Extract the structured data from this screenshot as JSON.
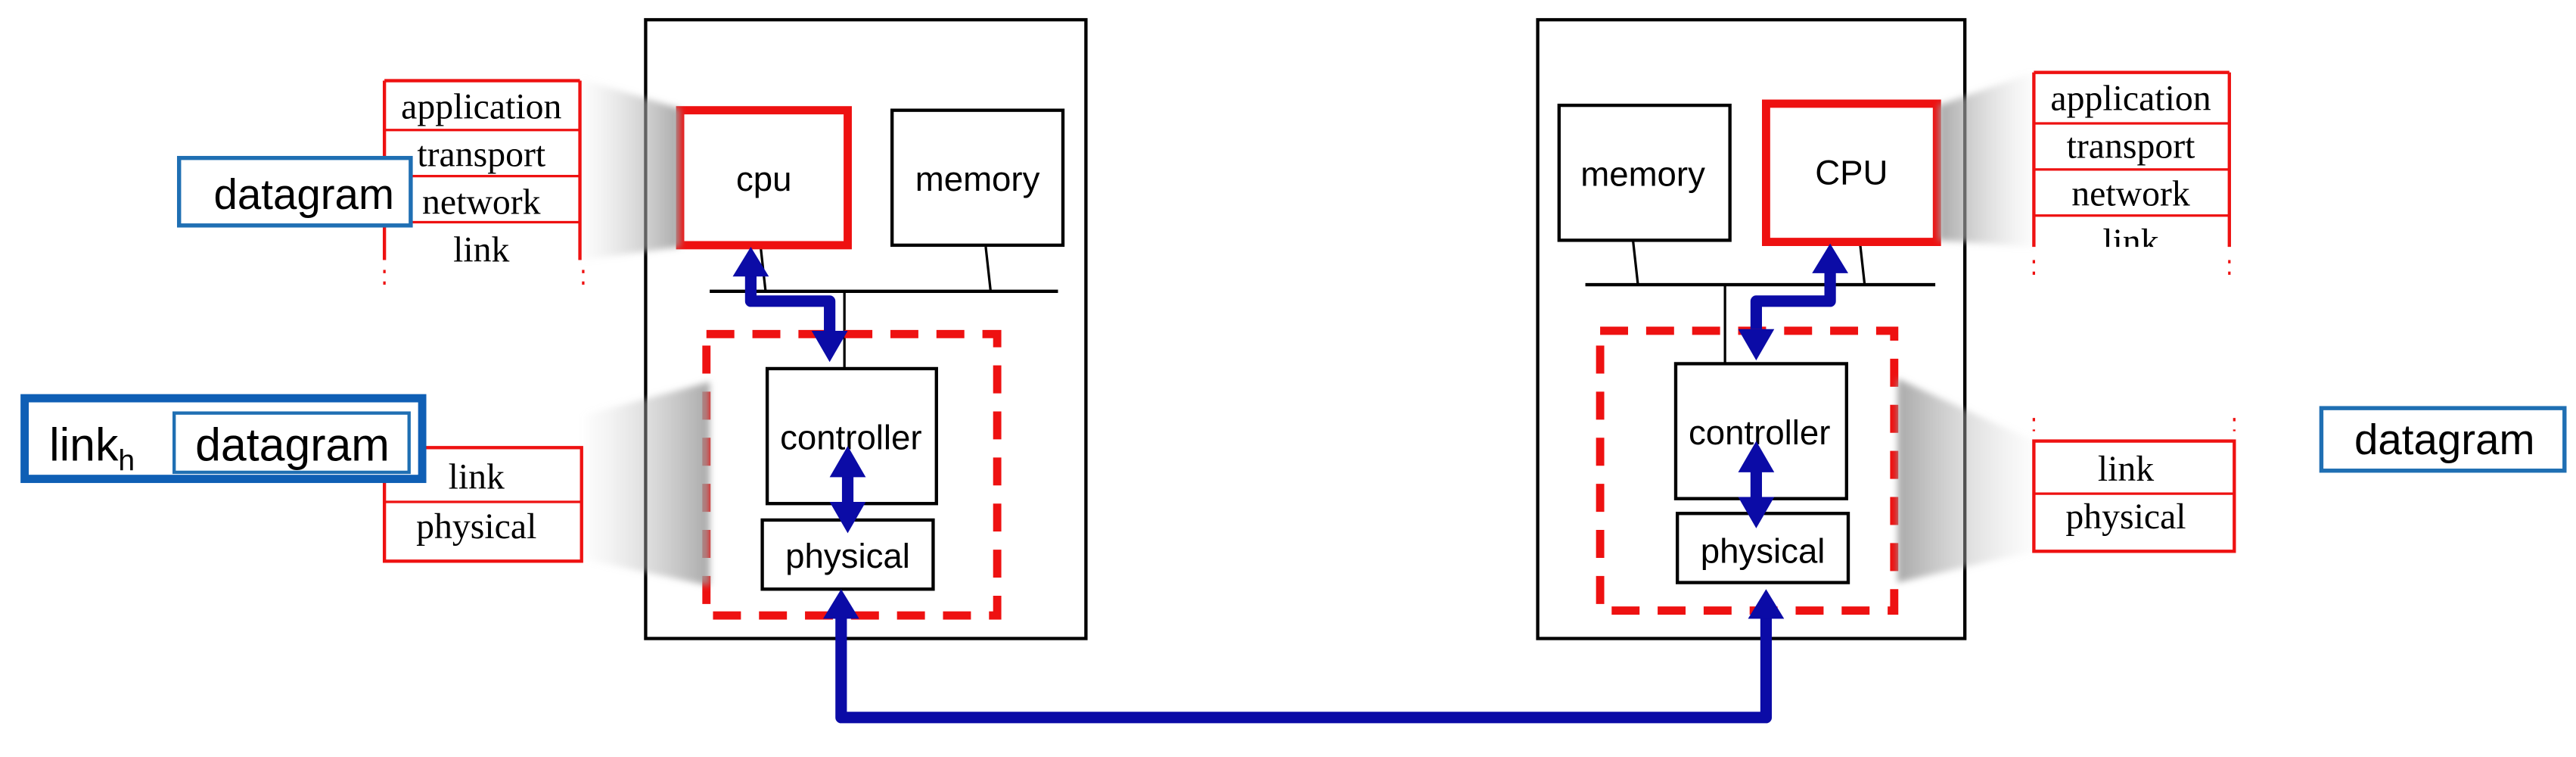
{
  "left_host": {
    "cpu_label": "cpu",
    "memory_label": "memory",
    "controller_label": "controller",
    "physical_label": "physical",
    "protocol_stack_upper": [
      "application",
      "transport",
      "network",
      "link"
    ],
    "protocol_stack_lower": [
      "link",
      "physical"
    ],
    "datagram_label": "datagram",
    "frame": {
      "header_label": "link",
      "header_subscript": "h",
      "datagram_label": "datagram"
    }
  },
  "right_host": {
    "cpu_label": "CPU",
    "memory_label": "memory",
    "controller_label": "controller",
    "physical_label": "physical",
    "protocol_stack_upper": [
      "application",
      "transport",
      "network",
      "link"
    ],
    "protocol_stack_lower": [
      "link",
      "physical"
    ],
    "datagram_label": "datagram"
  },
  "colors": {
    "highlight_red": "#ee1111",
    "arrow_blue": "#0b0ba6",
    "datagram_blue": "#1f6fb3",
    "frame_blue": "#0f5fb5"
  }
}
